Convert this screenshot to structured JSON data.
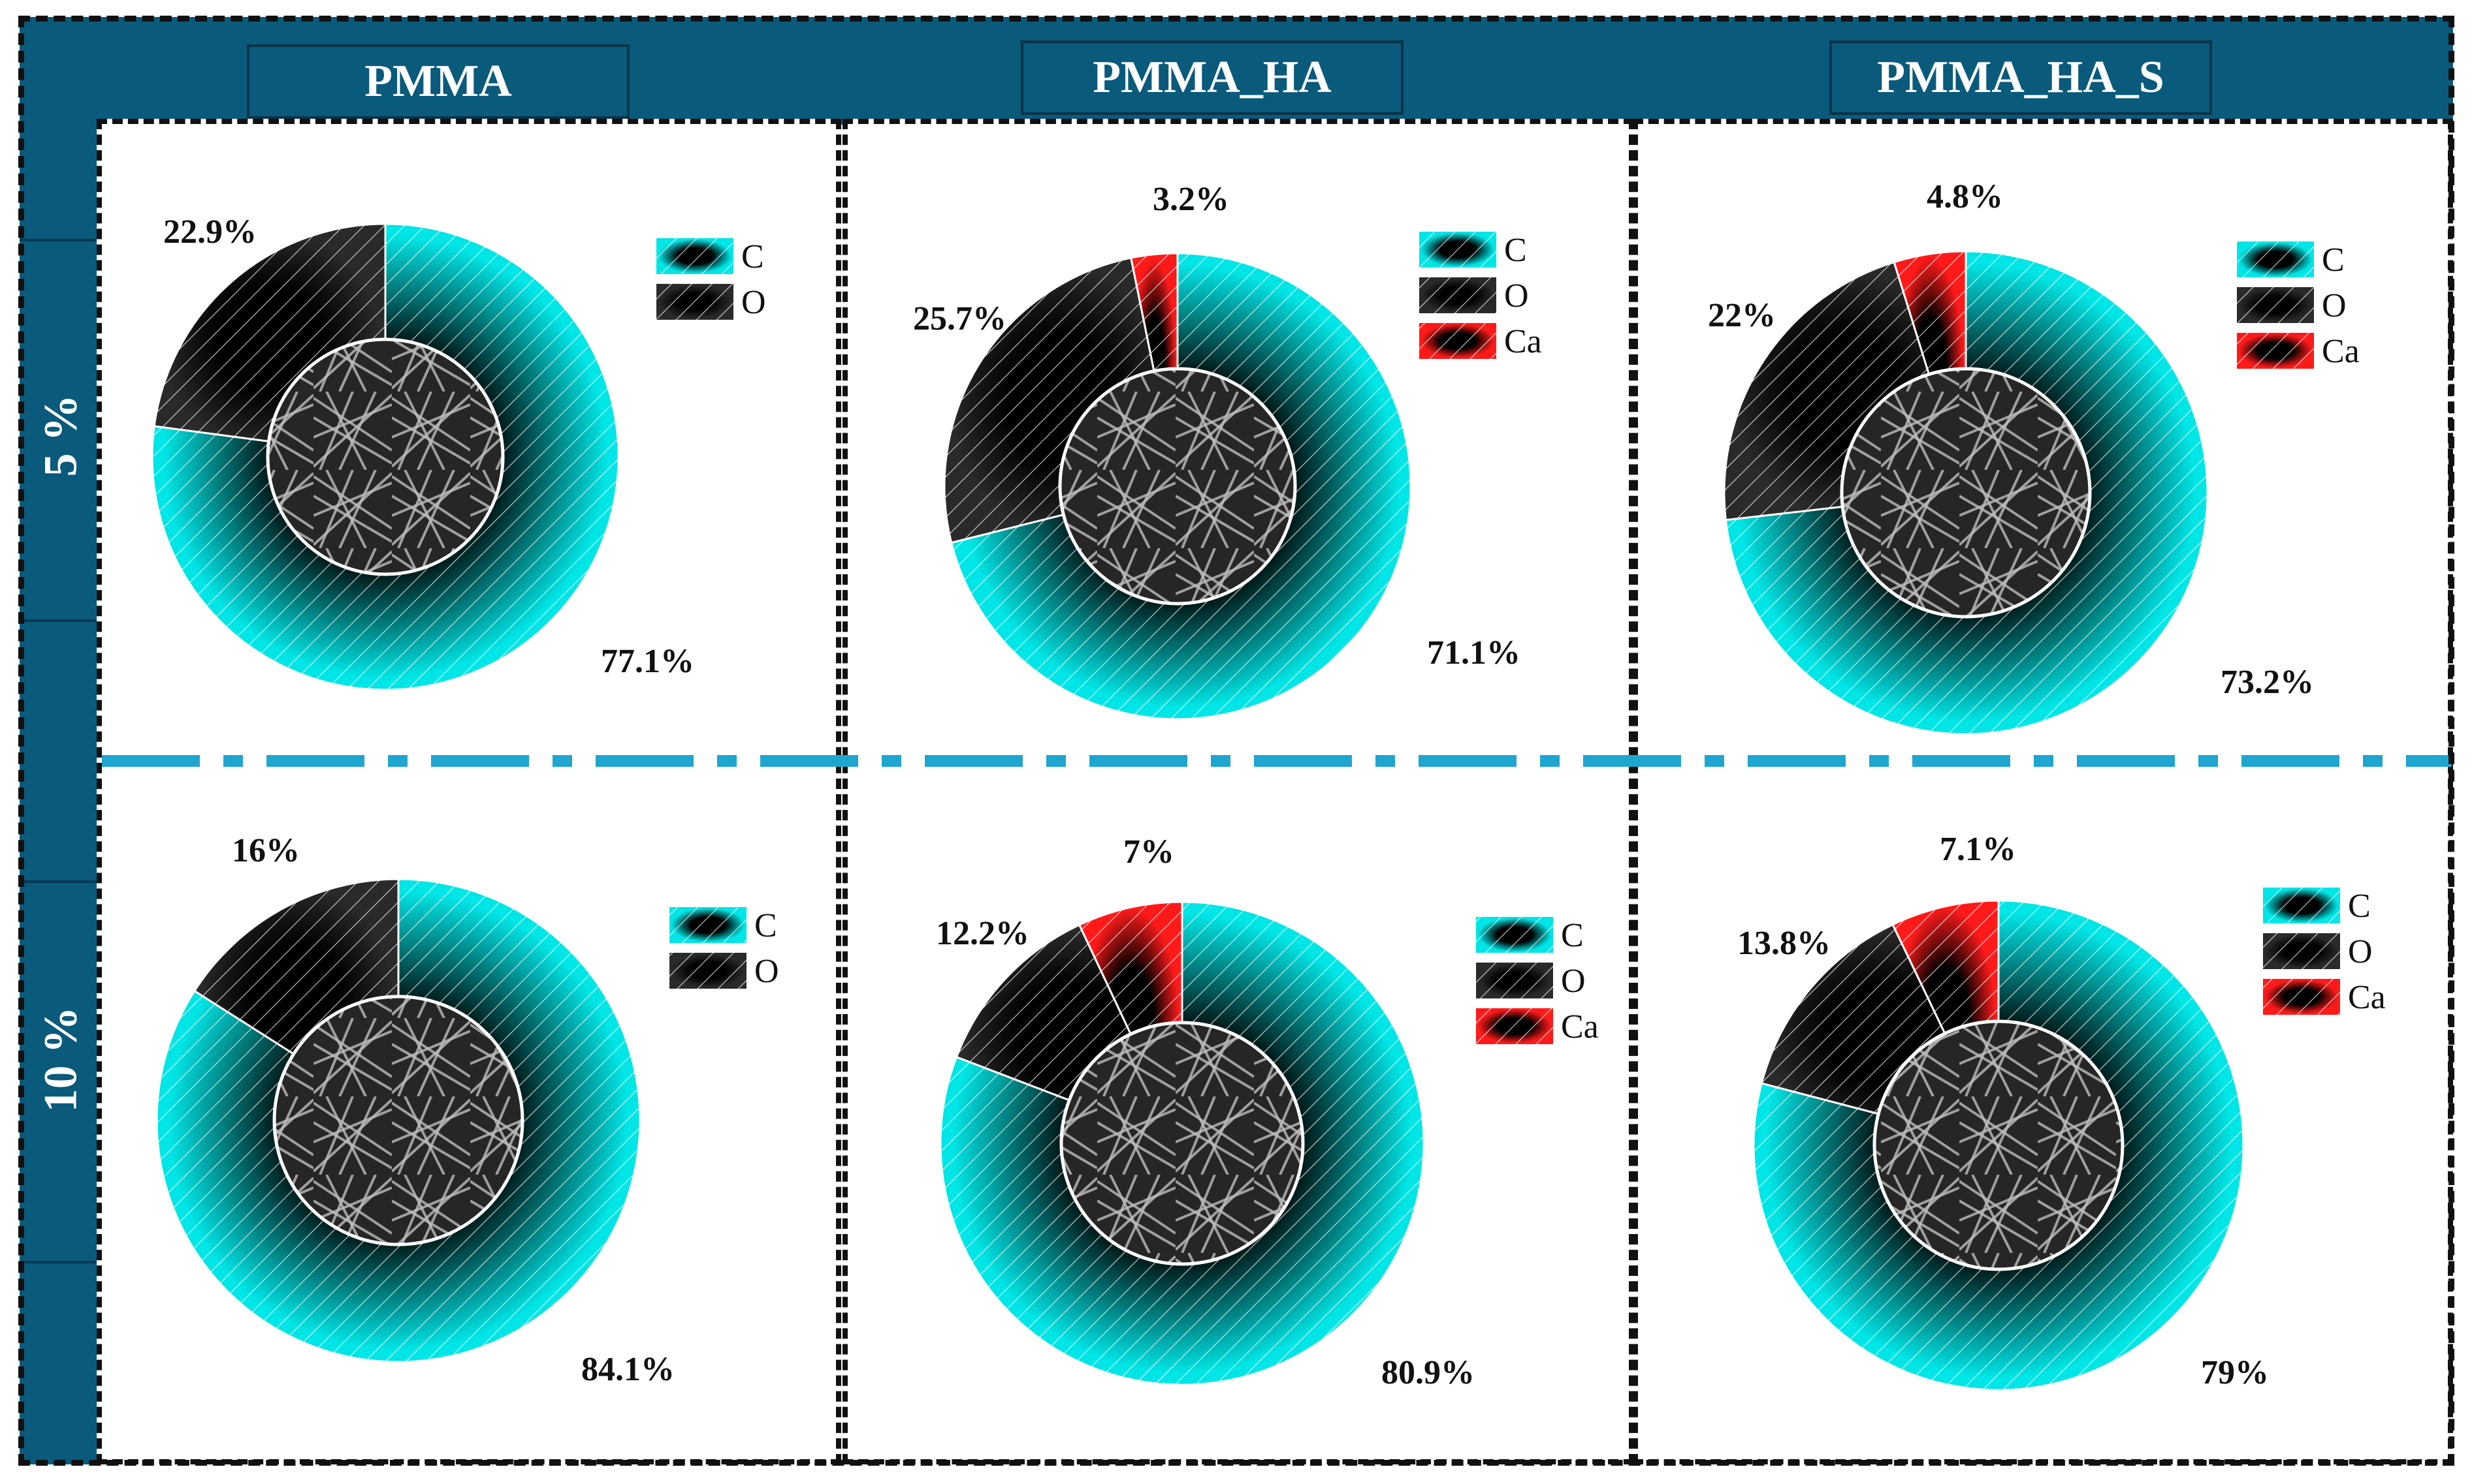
{
  "columns": [
    "PMMA",
    "PMMA_HA",
    "PMMA_HA_S"
  ],
  "rows": [
    "5 %",
    "10 %"
  ],
  "colors": {
    "C": "#00e5e5",
    "O": "#111111",
    "Ca": "#ff1a1a",
    "band": "#0a5a7c",
    "separator": "#1ea5d0"
  },
  "chart_data": [
    {
      "type": "pie",
      "column": "PMMA",
      "row": "5 %",
      "categories": [
        "C",
        "O"
      ],
      "values": [
        77.1,
        22.9
      ],
      "labels": [
        "77.1%",
        "22.9%"
      ]
    },
    {
      "type": "pie",
      "column": "PMMA_HA",
      "row": "5 %",
      "categories": [
        "C",
        "O",
        "Ca"
      ],
      "values": [
        71.1,
        25.7,
        3.2
      ],
      "labels": [
        "71.1%",
        "25.7%",
        "3.2%"
      ]
    },
    {
      "type": "pie",
      "column": "PMMA_HA_S",
      "row": "5 %",
      "categories": [
        "C",
        "O",
        "Ca"
      ],
      "values": [
        73.2,
        22,
        4.8
      ],
      "labels": [
        "73.2%",
        "22%",
        "4.8%"
      ]
    },
    {
      "type": "pie",
      "column": "PMMA",
      "row": "10 %",
      "categories": [
        "C",
        "O"
      ],
      "values": [
        84.1,
        16
      ],
      "labels": [
        "84.1%",
        "16%"
      ]
    },
    {
      "type": "pie",
      "column": "PMMA_HA",
      "row": "10 %",
      "categories": [
        "C",
        "O",
        "Ca"
      ],
      "values": [
        80.9,
        12.2,
        7
      ],
      "labels": [
        "80.9%",
        "12.2%",
        "7%"
      ]
    },
    {
      "type": "pie",
      "column": "PMMA_HA_S",
      "row": "10 %",
      "categories": [
        "C",
        "O",
        "Ca"
      ],
      "values": [
        79,
        13.8,
        7.1
      ],
      "labels": [
        "79%",
        "13.8%",
        "7.1%"
      ]
    }
  ]
}
